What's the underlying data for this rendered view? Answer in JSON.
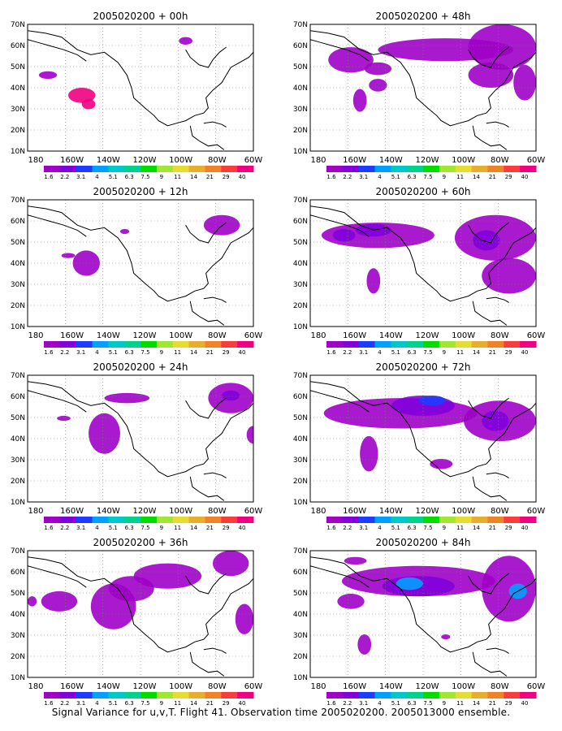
{
  "figure": {
    "footer": "Signal Variance for u,v,T. Flight 41. Observation time 2005020200. 2005013000 ensemble."
  },
  "axes": {
    "y_ticks": [
      "70N",
      "60N",
      "50N",
      "40N",
      "30N",
      "20N",
      "10N"
    ],
    "x_ticks": [
      "180",
      "160W",
      "140W",
      "120W",
      "100W",
      "80W",
      "60W"
    ]
  },
  "colorbar": {
    "labels": [
      "1.6",
      "2.2",
      "3.1",
      "4",
      "5.1",
      "6.3",
      "7.5",
      "9",
      "11",
      "14",
      "21",
      "29",
      "40"
    ],
    "colors": [
      "#a000c8",
      "#8200dc",
      "#1e3cff",
      "#00a0ff",
      "#00c8c8",
      "#00d28c",
      "#00dc00",
      "#a0e632",
      "#e6dc32",
      "#e6af2d",
      "#f08228",
      "#fa3c3c",
      "#f00082"
    ]
  },
  "panels": [
    {
      "title": "2005020200 + 00h"
    },
    {
      "title": "2005020200 + 48h"
    },
    {
      "title": "2005020200 + 12h"
    },
    {
      "title": "2005020200 + 60h"
    },
    {
      "title": "2005020200 + 24h"
    },
    {
      "title": "2005020200 + 72h"
    },
    {
      "title": "2005020200 + 36h"
    },
    {
      "title": "2005020200 + 84h"
    }
  ]
}
